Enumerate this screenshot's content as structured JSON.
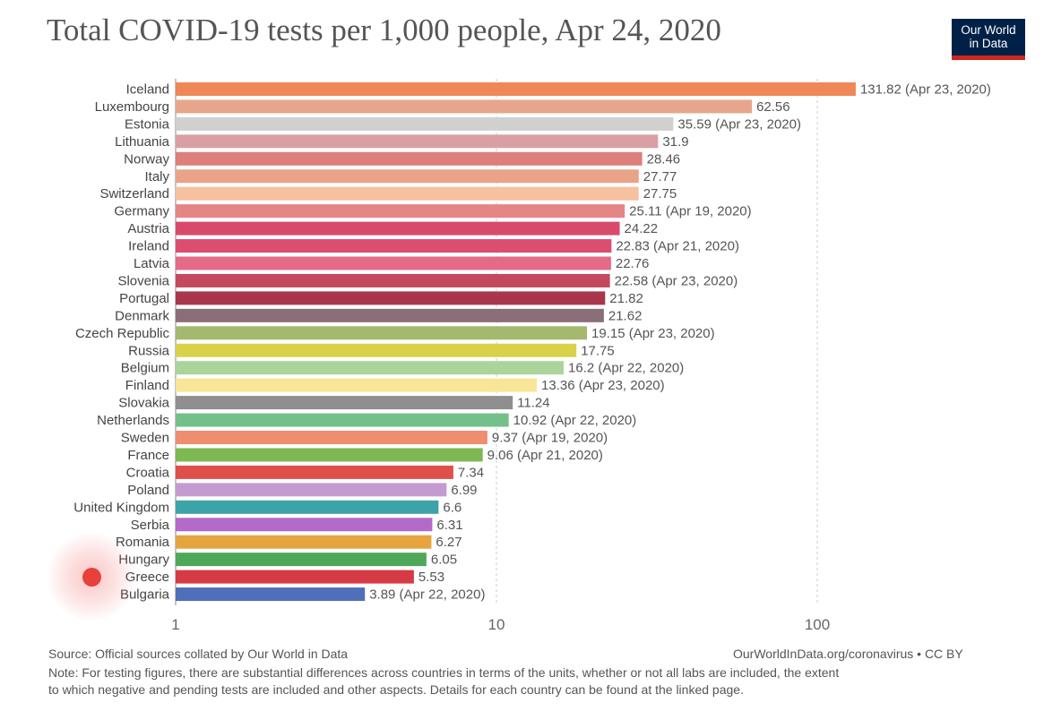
{
  "header": {
    "title": "Total COVID-19 tests per 1,000 people, Apr 24, 2020",
    "logo_line1": "Our World",
    "logo_line2": "in Data"
  },
  "footer": {
    "source": "Source: Official sources collated by Our World in Data",
    "link": "OurWorldInData.org/coronavirus • CC BY",
    "note_line1": "Note: For testing figures, there are substantial differences across countries in terms of the units, whether or not all labs are included, the extent",
    "note_line2": "to which negative and pending tests are included and other aspects. Details for each country can be found at the linked page."
  },
  "chart_data": {
    "type": "bar",
    "orientation": "horizontal",
    "title": "Total COVID-19 tests per 1,000 people, Apr 24, 2020",
    "x_scale": "log",
    "xlim": [
      1,
      150
    ],
    "x_ticks": [
      {
        "value": 1,
        "label": "1"
      },
      {
        "value": 10,
        "label": "10"
      },
      {
        "value": 100,
        "label": "100"
      }
    ],
    "rows": [
      {
        "name": "Iceland",
        "value": 131.82,
        "label": "131.82 (Apr 23, 2020)",
        "color": "#ef8757"
      },
      {
        "name": "Luxembourg",
        "value": 62.56,
        "label": "62.56",
        "color": "#e7a68b"
      },
      {
        "name": "Estonia",
        "value": 35.59,
        "label": "35.59 (Apr 23, 2020)",
        "color": "#d0d0d0"
      },
      {
        "name": "Lithuania",
        "value": 31.9,
        "label": "31.9",
        "color": "#d9a0a3"
      },
      {
        "name": "Norway",
        "value": 28.46,
        "label": "28.46",
        "color": "#dd7f7a"
      },
      {
        "name": "Italy",
        "value": 27.77,
        "label": "27.77",
        "color": "#e9a488"
      },
      {
        "name": "Switzerland",
        "value": 27.75,
        "label": "27.75",
        "color": "#f6c19f"
      },
      {
        "name": "Germany",
        "value": 25.11,
        "label": "25.11 (Apr 19, 2020)",
        "color": "#e68586"
      },
      {
        "name": "Austria",
        "value": 24.22,
        "label": "24.22",
        "color": "#d9496b"
      },
      {
        "name": "Ireland",
        "value": 22.83,
        "label": "22.83 (Apr 21, 2020)",
        "color": "#dc4d70"
      },
      {
        "name": "Latvia",
        "value": 22.76,
        "label": "22.76",
        "color": "#e46a88"
      },
      {
        "name": "Slovenia",
        "value": 22.58,
        "label": "22.58 (Apr 23, 2020)",
        "color": "#c4495c"
      },
      {
        "name": "Portugal",
        "value": 21.82,
        "label": "21.82",
        "color": "#a8374d"
      },
      {
        "name": "Denmark",
        "value": 21.62,
        "label": "21.62",
        "color": "#8a6f78"
      },
      {
        "name": "Czech Republic",
        "value": 19.15,
        "label": "19.15 (Apr 23, 2020)",
        "color": "#a4b86f"
      },
      {
        "name": "Russia",
        "value": 17.75,
        "label": "17.75",
        "color": "#d8d24a"
      },
      {
        "name": "Belgium",
        "value": 16.2,
        "label": "16.2 (Apr 22, 2020)",
        "color": "#abd49a"
      },
      {
        "name": "Finland",
        "value": 13.36,
        "label": "13.36 (Apr 23, 2020)",
        "color": "#f8e597"
      },
      {
        "name": "Slovakia",
        "value": 11.24,
        "label": "11.24",
        "color": "#8f8f8f"
      },
      {
        "name": "Netherlands",
        "value": 10.92,
        "label": "10.92 (Apr 22, 2020)",
        "color": "#74c08b"
      },
      {
        "name": "Sweden",
        "value": 9.37,
        "label": "9.37 (Apr 19, 2020)",
        "color": "#ef8d6e"
      },
      {
        "name": "France",
        "value": 9.06,
        "label": "9.06 (Apr 21, 2020)",
        "color": "#7eb852"
      },
      {
        "name": "Croatia",
        "value": 7.34,
        "label": "7.34",
        "color": "#e0504a"
      },
      {
        "name": "Poland",
        "value": 6.99,
        "label": "6.99",
        "color": "#c49bd0"
      },
      {
        "name": "United Kingdom",
        "value": 6.6,
        "label": "6.6",
        "color": "#3ea3a8"
      },
      {
        "name": "Serbia",
        "value": 6.31,
        "label": "6.31",
        "color": "#b36ac8"
      },
      {
        "name": "Romania",
        "value": 6.27,
        "label": "6.27",
        "color": "#e5a43d"
      },
      {
        "name": "Hungary",
        "value": 6.05,
        "label": "6.05",
        "color": "#4fa85a"
      },
      {
        "name": "Greece",
        "value": 5.53,
        "label": "5.53",
        "color": "#d63b45"
      },
      {
        "name": "Bulgaria",
        "value": 3.89,
        "label": "3.89 (Apr 22, 2020)",
        "color": "#4f6fba"
      }
    ]
  }
}
